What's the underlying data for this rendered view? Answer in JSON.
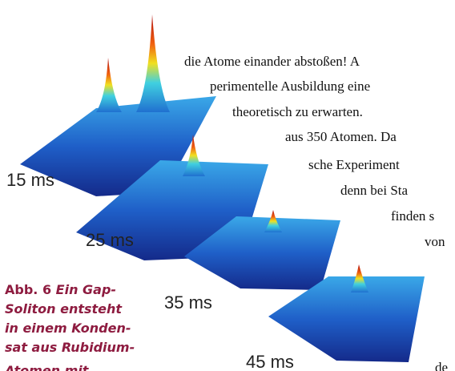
{
  "figure": {
    "labels": [
      "15 ms",
      "25 ms",
      "35 ms",
      "45 ms"
    ]
  },
  "caption": {
    "label": "Abb. 6",
    "lines": [
      "Ein Gap-",
      "Soliton entsteht",
      "in einem Konden-",
      "sat aus Rubidium-",
      "Atomen mit"
    ]
  },
  "body_text": {
    "lines": [
      "die Atome einander abstoßen! A",
      "perimentelle Ausbildung eine",
      "theoretisch zu erwarten.",
      "aus 350 Atomen. Da",
      "sche Experiment",
      "denn bei Sta",
      "finden s",
      "von",
      "de"
    ]
  }
}
